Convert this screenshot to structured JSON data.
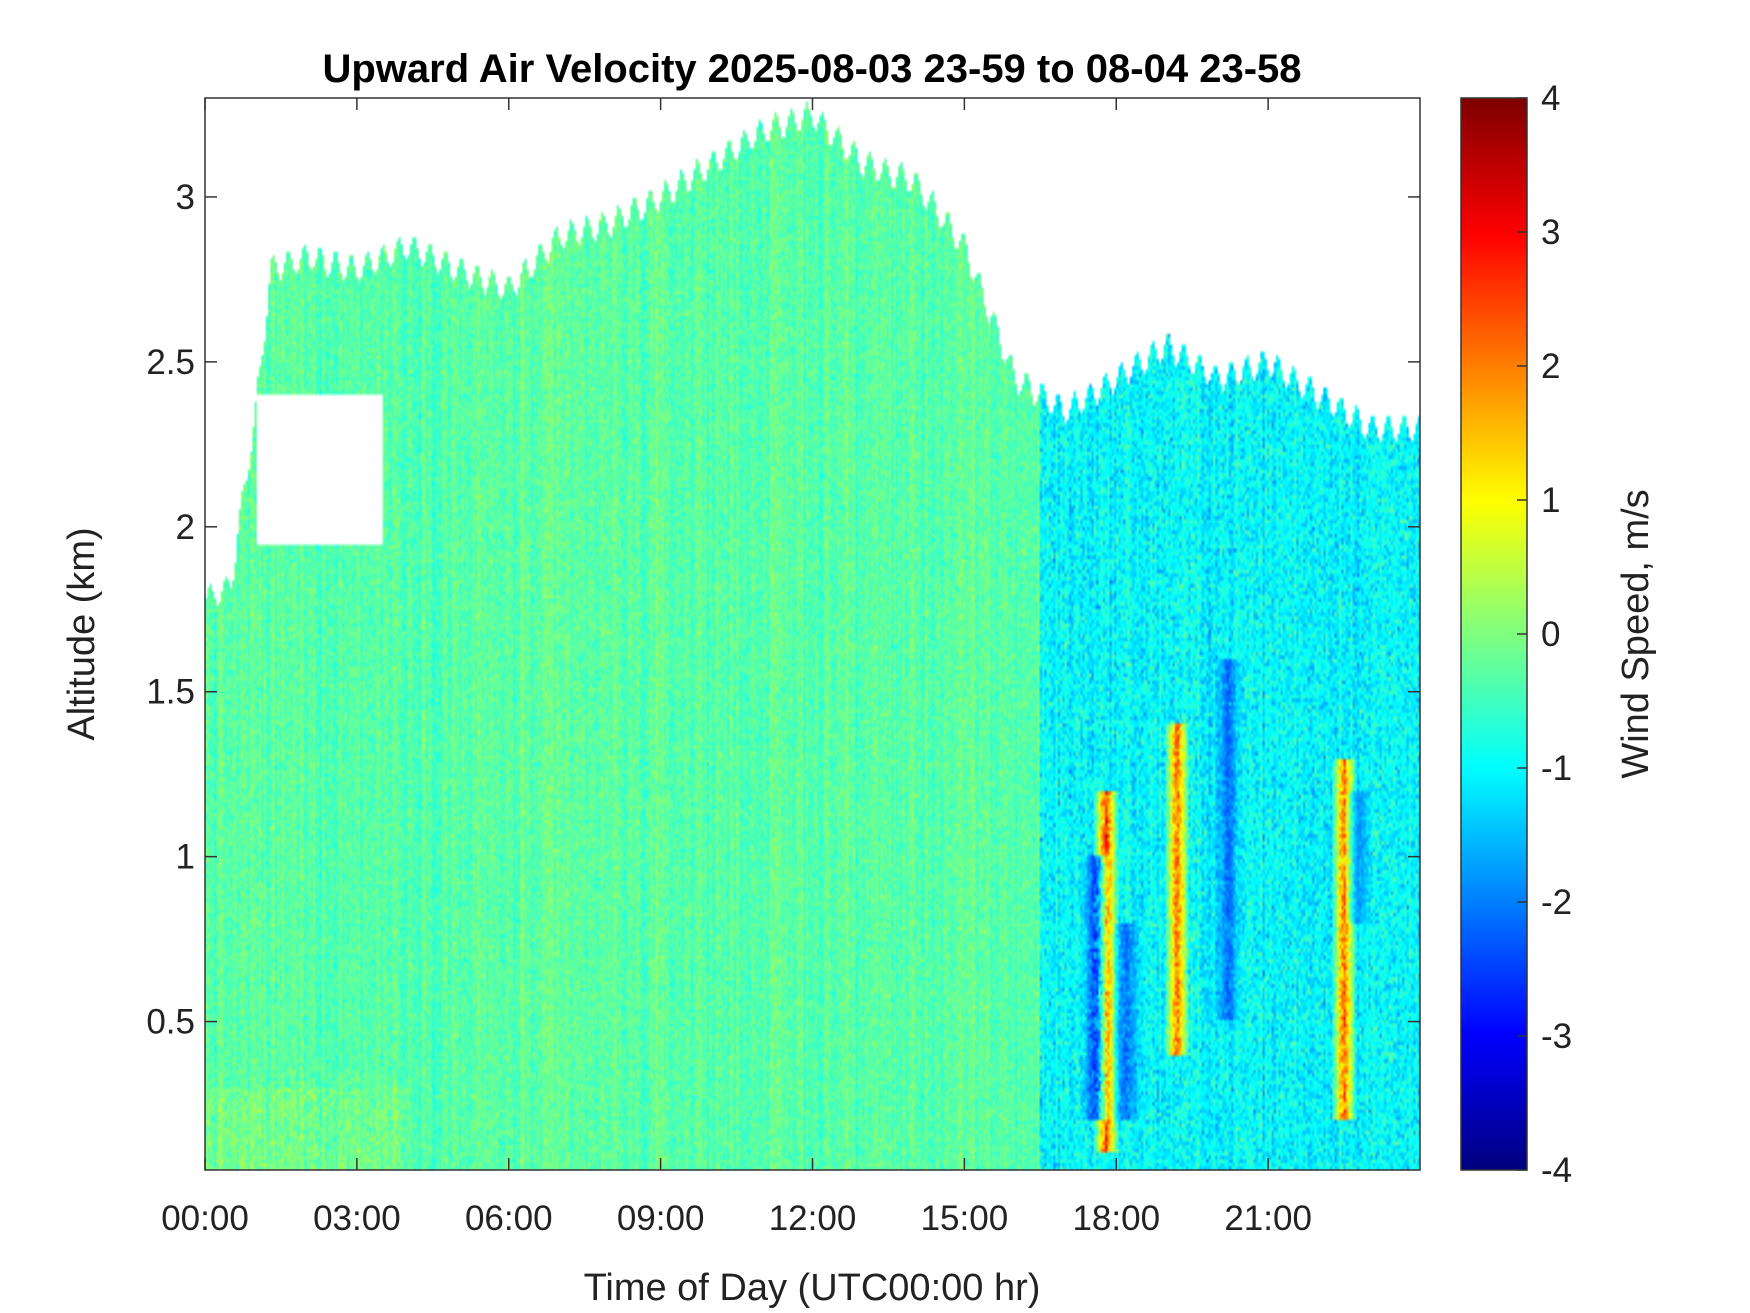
{
  "chart_data": {
    "type": "heatmap",
    "title": "Upward Air Velocity 2025-08-03 23-59 to 08-04 23-58",
    "xlabel": "Time of Day (UTC00:00 hr)",
    "ylabel": "Altitude (km)",
    "colorbar_label": "Wind Speed, m/s",
    "xlim": [
      0,
      24
    ],
    "ylim": [
      0.05,
      3.3
    ],
    "clim": [
      -4,
      4
    ],
    "colormap": "jet",
    "x_ticks": [
      {
        "value": 0,
        "label": "00:00"
      },
      {
        "value": 3,
        "label": "03:00"
      },
      {
        "value": 6,
        "label": "06:00"
      },
      {
        "value": 9,
        "label": "09:00"
      },
      {
        "value": 12,
        "label": "12:00"
      },
      {
        "value": 15,
        "label": "15:00"
      },
      {
        "value": 18,
        "label": "18:00"
      },
      {
        "value": 21,
        "label": "21:00"
      }
    ],
    "y_ticks": [
      {
        "value": 0.5,
        "label": "0.5"
      },
      {
        "value": 1,
        "label": "1"
      },
      {
        "value": 1.5,
        "label": "1.5"
      },
      {
        "value": 2,
        "label": "2"
      },
      {
        "value": 2.5,
        "label": "2.5"
      },
      {
        "value": 3,
        "label": "3"
      }
    ],
    "colorbar_ticks": [
      {
        "value": 4,
        "label": "4"
      },
      {
        "value": 3,
        "label": "3"
      },
      {
        "value": 2,
        "label": "2"
      },
      {
        "value": 1,
        "label": "1"
      },
      {
        "value": 0,
        "label": "0"
      },
      {
        "value": -1,
        "label": "-1"
      },
      {
        "value": -2,
        "label": "-2"
      },
      {
        "value": -3,
        "label": "-3"
      },
      {
        "value": -4,
        "label": "-4"
      }
    ],
    "data_top_altitude_km": [
      [
        0,
        1.78
      ],
      [
        0.5,
        1.82
      ],
      [
        1,
        2.35
      ],
      [
        1.3,
        2.78
      ],
      [
        2,
        2.82
      ],
      [
        3,
        2.78
      ],
      [
        4,
        2.85
      ],
      [
        5,
        2.78
      ],
      [
        6,
        2.72
      ],
      [
        7,
        2.88
      ],
      [
        8,
        2.92
      ],
      [
        9,
        3.0
      ],
      [
        10,
        3.1
      ],
      [
        11,
        3.2
      ],
      [
        12,
        3.25
      ],
      [
        13,
        3.1
      ],
      [
        14,
        3.05
      ],
      [
        15,
        2.85
      ],
      [
        16,
        2.45
      ],
      [
        17,
        2.35
      ],
      [
        18,
        2.45
      ],
      [
        19,
        2.55
      ],
      [
        20,
        2.45
      ],
      [
        21,
        2.5
      ],
      [
        22,
        2.4
      ],
      [
        23,
        2.3
      ],
      [
        24,
        2.3
      ]
    ],
    "mean_velocity_by_period": [
      {
        "from": 0,
        "to": 16.5,
        "value": -0.3
      },
      {
        "from": 16.5,
        "to": 24,
        "value": -1.0
      }
    ],
    "updraft_features": [
      {
        "time": 17.8,
        "alt_from": 0.1,
        "alt_to": 1.2,
        "value": 3.5
      },
      {
        "time": 19.2,
        "alt_from": 0.4,
        "alt_to": 1.4,
        "value": 3.0
      },
      {
        "time": 22.5,
        "alt_from": 0.2,
        "alt_to": 1.3,
        "value": 3.0
      }
    ],
    "downdraft_features": [
      {
        "time": 17.6,
        "alt_from": 0.2,
        "alt_to": 1.0,
        "value": -3.0
      },
      {
        "time": 18.2,
        "alt_from": 0.2,
        "alt_to": 0.8,
        "value": -2.5
      },
      {
        "time": 20.2,
        "alt_from": 0.5,
        "alt_to": 1.6,
        "value": -2.5
      },
      {
        "time": 22.8,
        "alt_from": 0.8,
        "alt_to": 1.2,
        "value": -2.0
      }
    ]
  }
}
